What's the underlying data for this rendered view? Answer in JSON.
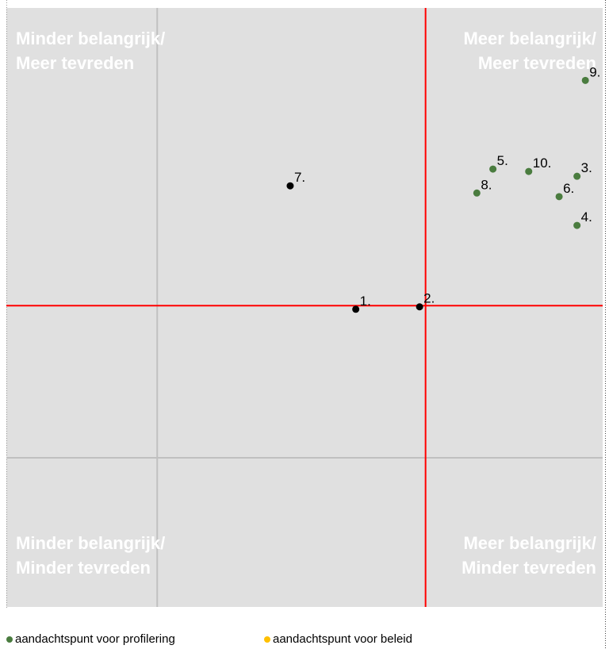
{
  "chart_data": {
    "type": "scatter",
    "quadrant_labels": [
      {
        "lines": [
          "Minder belangrijk/",
          "Meer tevreden"
        ],
        "corner": "top-left"
      },
      {
        "lines": [
          "Meer belangrijk/",
          "Meer tevreden"
        ],
        "corner": "top-right"
      },
      {
        "lines": [
          "Minder belangrijk/",
          "Minder tevreden"
        ],
        "corner": "bottom-left"
      },
      {
        "lines": [
          "Meer belangrijk/",
          "Minder tevreden"
        ],
        "corner": "bottom-right"
      }
    ],
    "point_labels": [
      "1.",
      "2.",
      "3.",
      "4.",
      "5.",
      "6.",
      "7.",
      "8.",
      "9.",
      "10."
    ],
    "x": [
      58.6,
      69.3,
      95.7,
      95.7,
      81.6,
      92.7,
      47.6,
      78.9,
      97.1,
      87.6
    ],
    "y": [
      49.7,
      50.1,
      71.9,
      63.7,
      73.1,
      68.5,
      70.3,
      69.1,
      87.9,
      72.7
    ],
    "colors": [
      "#000000",
      "#000000",
      "#4a7c3f",
      "#4a7c3f",
      "#4a7c3f",
      "#4a7c3f",
      "#000000",
      "#4a7c3f",
      "#4a7c3f",
      "#4a7c3f"
    ],
    "xlim": [
      0,
      100
    ],
    "ylim": [
      0,
      100
    ],
    "reference_lines": {
      "x": [
        {
          "value": 70.3,
          "color": "#ff0000"
        },
        {
          "value": 25.3,
          "color": "#c0c0c0"
        }
      ],
      "y": [
        {
          "value": 50.3,
          "color": "#ff0000"
        },
        {
          "value": 24.9,
          "color": "#c0c0c0"
        }
      ]
    },
    "legend": [
      {
        "name": "aandachtspunt voor profilering",
        "color": "#4a7c3f"
      },
      {
        "name": "aandachtspunt voor beleid",
        "color": "#ffc000"
      }
    ]
  }
}
